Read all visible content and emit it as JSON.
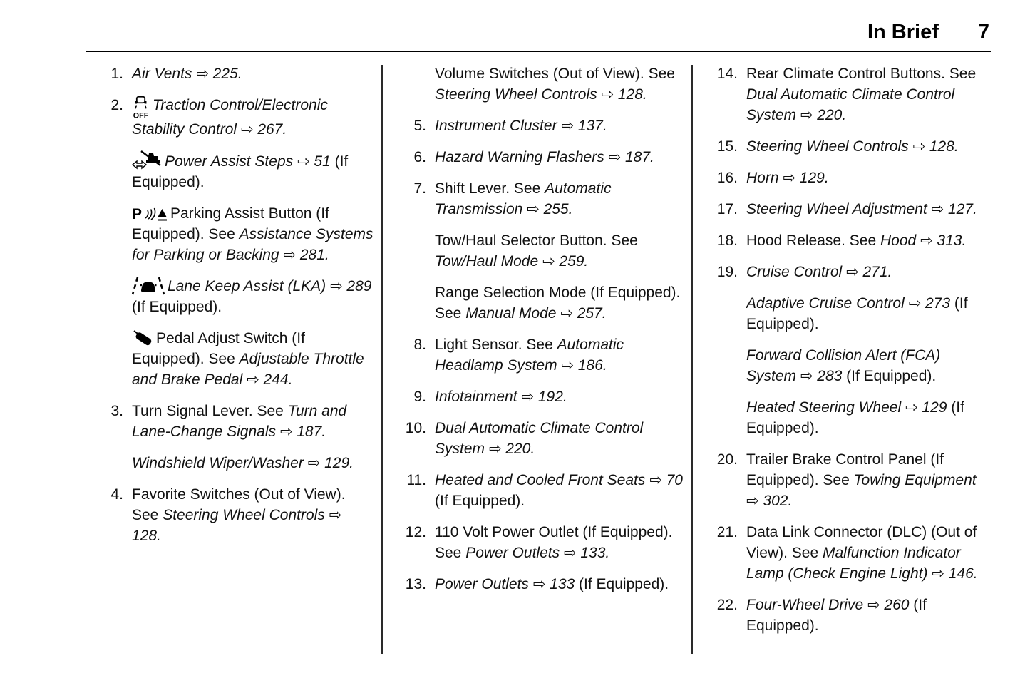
{
  "header": {
    "title": "In Brief",
    "page_number": "7"
  },
  "colors": {
    "text": "#111111",
    "rule": "#000000",
    "background": "#ffffff"
  },
  "columns": [
    {
      "items": [
        {
          "num": "1.",
          "paras": [
            {
              "segments": [
                {
                  "text": "Air Vents ⇨ 225.",
                  "italic": true
                }
              ]
            }
          ]
        },
        {
          "num": "2.",
          "paras": [
            {
              "icon": "traction-control-off-icon",
              "segments": [
                {
                  "text": "Traction Control/Electronic Stability Control ⇨ 267.",
                  "italic": true
                }
              ]
            },
            {
              "icon": "power-assist-steps-icon",
              "segments": [
                {
                  "text": "Power Assist Steps ⇨ 51",
                  "italic": true
                },
                {
                  "text": " (If Equipped).",
                  "italic": false
                }
              ]
            },
            {
              "icon": "parking-assist-icon",
              "segments": [
                {
                  "text": "Parking Assist Button (If Equipped). See ",
                  "italic": false
                },
                {
                  "text": "Assistance Systems for Parking or Backing ⇨ 281.",
                  "italic": true
                }
              ]
            },
            {
              "icon": "lane-keep-assist-icon",
              "segments": [
                {
                  "text": "Lane Keep Assist (LKA) ⇨ 289",
                  "italic": true
                },
                {
                  "text": " (If Equipped).",
                  "italic": false
                }
              ]
            },
            {
              "icon": "pedal-adjust-icon",
              "segments": [
                {
                  "text": "Pedal Adjust Switch (If Equipped). See ",
                  "italic": false
                },
                {
                  "text": "Adjustable Throttle and Brake Pedal ⇨ 244.",
                  "italic": true
                }
              ]
            }
          ]
        },
        {
          "num": "3.",
          "paras": [
            {
              "segments": [
                {
                  "text": "Turn Signal Lever. See ",
                  "italic": false
                },
                {
                  "text": "Turn and Lane-Change Signals ⇨ 187.",
                  "italic": true
                }
              ]
            },
            {
              "segments": [
                {
                  "text": "Windshield Wiper/Washer ⇨ 129.",
                  "italic": true
                }
              ]
            }
          ]
        },
        {
          "num": "4.",
          "paras": [
            {
              "segments": [
                {
                  "text": "Favorite Switches (Out of View). See ",
                  "italic": false
                },
                {
                  "text": "Steering Wheel Controls ⇨ 128.",
                  "italic": true
                }
              ]
            }
          ]
        }
      ]
    },
    {
      "items": [
        {
          "num": "",
          "paras": [
            {
              "segments": [
                {
                  "text": "Volume Switches (Out of View). See ",
                  "italic": false
                },
                {
                  "text": "Steering Wheel Controls ⇨ 128.",
                  "italic": true
                }
              ]
            }
          ]
        },
        {
          "num": "5.",
          "paras": [
            {
              "segments": [
                {
                  "text": "Instrument Cluster ⇨ 137.",
                  "italic": true
                }
              ]
            }
          ]
        },
        {
          "num": "6.",
          "paras": [
            {
              "segments": [
                {
                  "text": "Hazard Warning Flashers ⇨ 187.",
                  "italic": true
                }
              ]
            }
          ]
        },
        {
          "num": "7.",
          "paras": [
            {
              "segments": [
                {
                  "text": "Shift Lever. See ",
                  "italic": false
                },
                {
                  "text": "Automatic Transmission ⇨ 255.",
                  "italic": true
                }
              ]
            },
            {
              "segments": [
                {
                  "text": "Tow/Haul Selector Button. See ",
                  "italic": false
                },
                {
                  "text": "Tow/Haul Mode ⇨ 259.",
                  "italic": true
                }
              ]
            },
            {
              "segments": [
                {
                  "text": "Range Selection Mode (If Equipped). See ",
                  "italic": false
                },
                {
                  "text": "Manual Mode ⇨ 257.",
                  "italic": true
                }
              ]
            }
          ]
        },
        {
          "num": "8.",
          "paras": [
            {
              "segments": [
                {
                  "text": "Light Sensor. See ",
                  "italic": false
                },
                {
                  "text": "Automatic Headlamp System ⇨ 186.",
                  "italic": true
                }
              ]
            }
          ]
        },
        {
          "num": "9.",
          "paras": [
            {
              "segments": [
                {
                  "text": "Infotainment ⇨ 192.",
                  "italic": true
                }
              ]
            }
          ]
        },
        {
          "num": "10.",
          "paras": [
            {
              "segments": [
                {
                  "text": "Dual Automatic Climate Control System ⇨ 220.",
                  "italic": true
                }
              ]
            }
          ]
        },
        {
          "num": "11.",
          "paras": [
            {
              "segments": [
                {
                  "text": "Heated and Cooled Front Seats ⇨ 70",
                  "italic": true
                },
                {
                  "text": " (If Equipped).",
                  "italic": false
                }
              ]
            }
          ]
        },
        {
          "num": "12.",
          "paras": [
            {
              "segments": [
                {
                  "text": "110 Volt Power Outlet (If Equipped). See ",
                  "italic": false
                },
                {
                  "text": "Power Outlets ⇨ 133.",
                  "italic": true
                }
              ]
            }
          ]
        },
        {
          "num": "13.",
          "paras": [
            {
              "segments": [
                {
                  "text": "Power Outlets ⇨ 133",
                  "italic": true
                },
                {
                  "text": " (If Equipped).",
                  "italic": false
                }
              ]
            }
          ]
        }
      ]
    },
    {
      "items": [
        {
          "num": "14.",
          "paras": [
            {
              "segments": [
                {
                  "text": "Rear Climate Control Buttons. See ",
                  "italic": false
                },
                {
                  "text": "Dual Automatic Climate Control System ⇨ 220.",
                  "italic": true
                }
              ]
            }
          ]
        },
        {
          "num": "15.",
          "paras": [
            {
              "segments": [
                {
                  "text": "Steering Wheel Controls ⇨ 128.",
                  "italic": true
                }
              ]
            }
          ]
        },
        {
          "num": "16.",
          "paras": [
            {
              "segments": [
                {
                  "text": "Horn ⇨ 129.",
                  "italic": true
                }
              ]
            }
          ]
        },
        {
          "num": "17.",
          "paras": [
            {
              "segments": [
                {
                  "text": "Steering Wheel Adjustment ⇨ 127.",
                  "italic": true
                }
              ]
            }
          ]
        },
        {
          "num": "18.",
          "paras": [
            {
              "segments": [
                {
                  "text": "Hood Release. See ",
                  "italic": false
                },
                {
                  "text": "Hood ⇨ 313.",
                  "italic": true
                }
              ]
            }
          ]
        },
        {
          "num": "19.",
          "paras": [
            {
              "segments": [
                {
                  "text": "Cruise Control ⇨ 271.",
                  "italic": true
                }
              ]
            },
            {
              "segments": [
                {
                  "text": "Adaptive Cruise Control ⇨ 273",
                  "italic": true
                },
                {
                  "text": " (If Equipped).",
                  "italic": false
                }
              ]
            },
            {
              "segments": [
                {
                  "text": "Forward Collision Alert (FCA) System ⇨ 283",
                  "italic": true
                },
                {
                  "text": " (If Equipped).",
                  "italic": false
                }
              ]
            },
            {
              "segments": [
                {
                  "text": "Heated Steering Wheel ⇨ 129",
                  "italic": true
                },
                {
                  "text": " (If Equipped).",
                  "italic": false
                }
              ]
            }
          ]
        },
        {
          "num": "20.",
          "paras": [
            {
              "segments": [
                {
                  "text": "Trailer Brake Control Panel (If Equipped). See ",
                  "italic": false
                },
                {
                  "text": "Towing Equipment ⇨ 302.",
                  "italic": true
                }
              ]
            }
          ]
        },
        {
          "num": "21.",
          "paras": [
            {
              "segments": [
                {
                  "text": "Data Link Connector (DLC) (Out of View). See ",
                  "italic": false
                },
                {
                  "text": "Malfunction Indicator Lamp (Check Engine Light) ⇨ 146.",
                  "italic": true
                }
              ]
            }
          ]
        },
        {
          "num": "22.",
          "paras": [
            {
              "segments": [
                {
                  "text": "Four-Wheel Drive ⇨ 260",
                  "italic": true
                },
                {
                  "text": " (If Equipped).",
                  "italic": false
                }
              ]
            }
          ]
        }
      ]
    }
  ]
}
